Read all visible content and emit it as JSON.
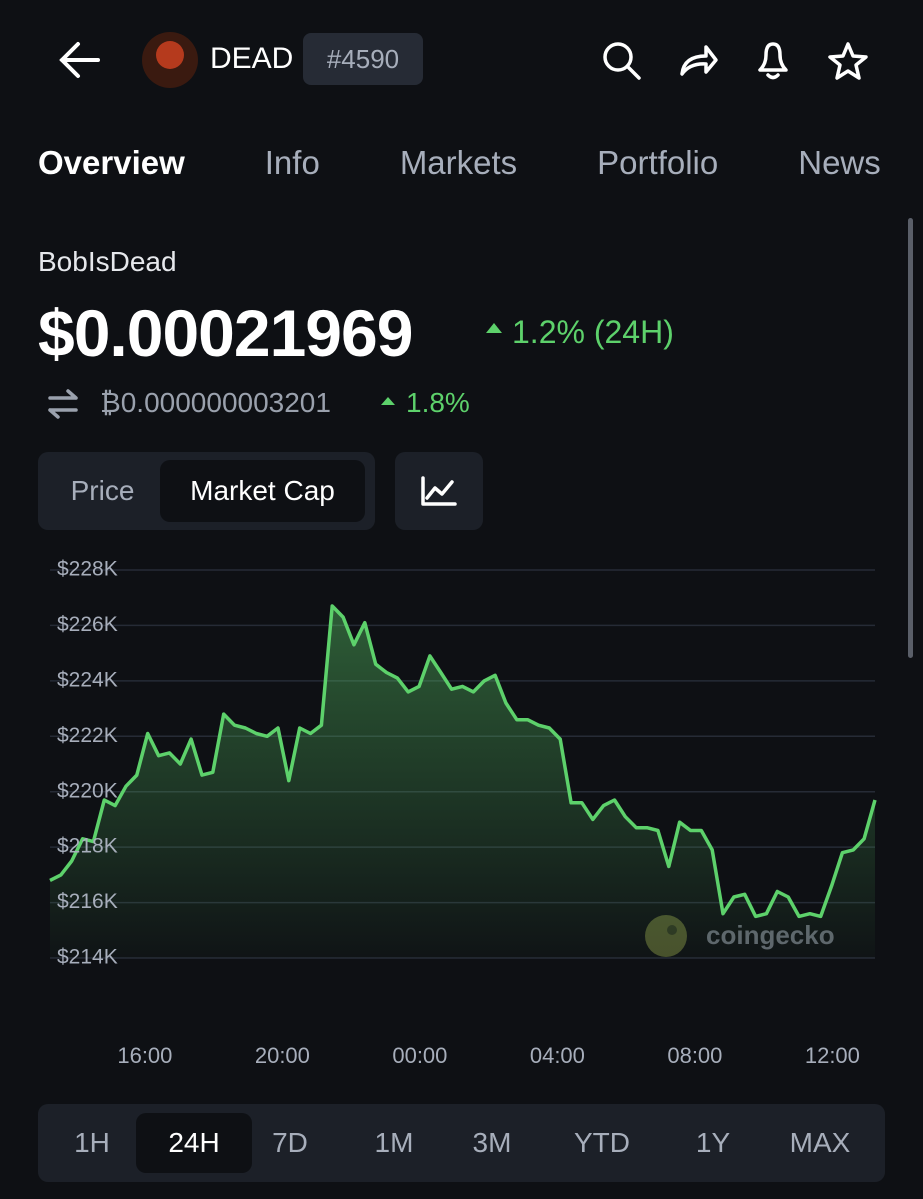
{
  "header": {
    "ticker": "DEAD",
    "rank": "#4590"
  },
  "tabs": [
    "Overview",
    "Info",
    "Markets",
    "Portfolio",
    "News"
  ],
  "coin": {
    "name": "BobIsDead",
    "price": "$0.00021969",
    "change": "1.2% (24H)",
    "btc_price": "₿0.000000003201",
    "btc_change": "1.8%"
  },
  "chart_toggle": [
    "Price",
    "Market Cap"
  ],
  "chart_data": {
    "type": "line",
    "color": "#5dd16b",
    "grid": true,
    "watermark": "coingecko",
    "ylim": [
      214000,
      228000
    ],
    "yticks": [
      {
        "value": 214000,
        "label": "$214K"
      },
      {
        "value": 216000,
        "label": "$216K"
      },
      {
        "value": 218000,
        "label": "$218K"
      },
      {
        "value": 220000,
        "label": "$220K"
      },
      {
        "value": 222000,
        "label": "$222K"
      },
      {
        "value": 224000,
        "label": "$224K"
      },
      {
        "value": 226000,
        "label": "$226K"
      },
      {
        "value": 228000,
        "label": "$228K"
      }
    ],
    "x_labels": [
      "16:00",
      "20:00",
      "00:00",
      "04:00",
      "08:00",
      "12:00"
    ],
    "values": [
      216800,
      217000,
      217500,
      218300,
      218200,
      219700,
      219500,
      220200,
      220600,
      222100,
      221300,
      221400,
      221000,
      221900,
      220600,
      220700,
      222800,
      222400,
      222300,
      222100,
      222000,
      222300,
      220400,
      222300,
      222100,
      222400,
      226700,
      226300,
      225300,
      226100,
      224600,
      224300,
      224100,
      223600,
      223800,
      224900,
      224300,
      223700,
      223800,
      223600,
      224000,
      224200,
      223200,
      222600,
      222600,
      222400,
      222300,
      221900,
      219600,
      219600,
      219000,
      219500,
      219700,
      219100,
      218700,
      218700,
      218600,
      217300,
      218900,
      218600,
      218600,
      217900,
      215600,
      216200,
      216300,
      215500,
      215600,
      216400,
      216200,
      215500,
      215600,
      215500,
      216600,
      217800,
      217900,
      218300,
      219700
    ]
  },
  "ranges": [
    "1H",
    "24H",
    "7D",
    "1M",
    "3M",
    "YTD",
    "1Y",
    "MAX"
  ]
}
